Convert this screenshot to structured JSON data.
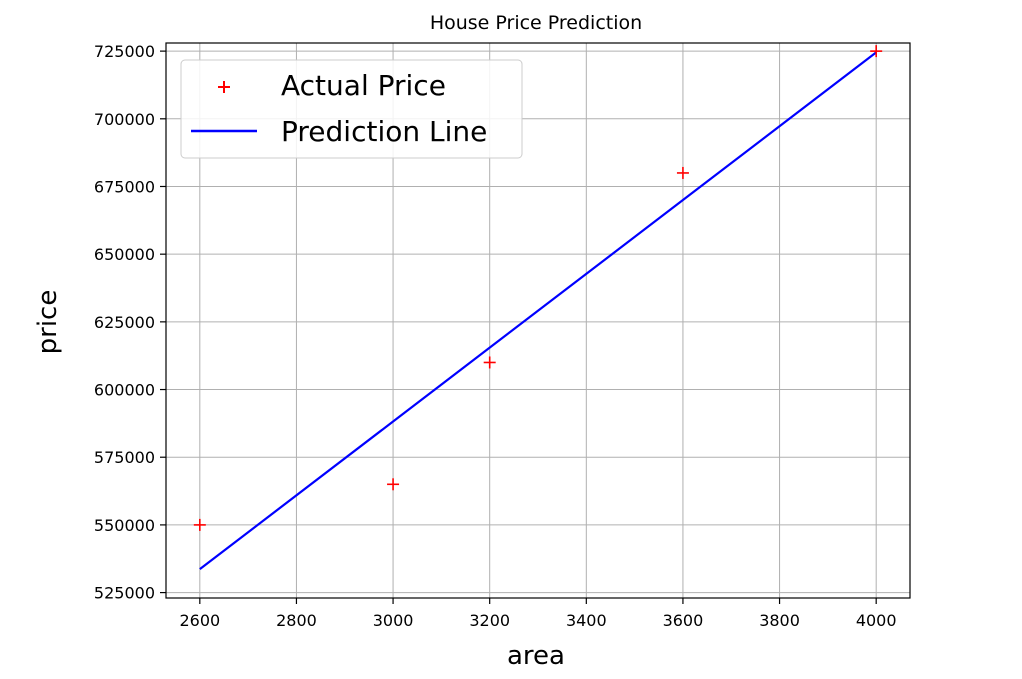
{
  "chart_data": {
    "type": "scatter",
    "title": "House Price Prediction",
    "xlabel": "area",
    "ylabel": "price",
    "xlim": [
      2530,
      4070
    ],
    "ylim": [
      523000,
      728000
    ],
    "xticks": [
      2600,
      2800,
      3000,
      3200,
      3400,
      3600,
      3800,
      4000
    ],
    "yticks": [
      525000,
      550000,
      575000,
      600000,
      625000,
      650000,
      675000,
      700000,
      725000
    ],
    "grid": true,
    "legend_position": "top-left",
    "series": [
      {
        "name": "Actual Price",
        "kind": "scatter",
        "marker": "plus",
        "color": "#ff0000",
        "x": [
          2600,
          3000,
          3200,
          3600,
          4000
        ],
        "y": [
          550000,
          565000,
          610000,
          680000,
          725000
        ]
      },
      {
        "name": "Prediction Line",
        "kind": "line",
        "color": "#0000ff",
        "x": [
          2600,
          3000,
          3200,
          3600,
          4000
        ],
        "y": [
          533664,
          588198,
          615466,
          670000,
          724534
        ]
      }
    ]
  }
}
